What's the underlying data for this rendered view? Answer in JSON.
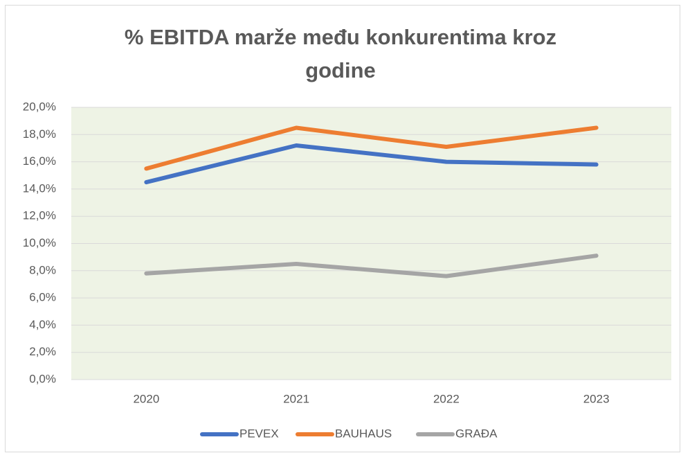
{
  "chart_data": {
    "type": "line",
    "title": "% EBITDA marže među konkurentima kroz godine",
    "categories": [
      "2020",
      "2021",
      "2022",
      "2023"
    ],
    "series": [
      {
        "name": "PEVEX",
        "color": "#4472c4",
        "values": [
          14.5,
          17.2,
          16.0,
          15.8
        ]
      },
      {
        "name": "BAUHAUS",
        "color": "#ed7d31",
        "values": [
          15.5,
          18.5,
          17.1,
          18.5
        ]
      },
      {
        "name": "GRAĐA",
        "color": "#a5a5a5",
        "values": [
          7.8,
          8.5,
          7.6,
          9.1
        ]
      }
    ],
    "ylim": [
      0,
      20
    ],
    "yticks": [
      {
        "value": 0,
        "label": "0,0%"
      },
      {
        "value": 2,
        "label": "2,0%"
      },
      {
        "value": 4,
        "label": "4,0%"
      },
      {
        "value": 6,
        "label": "6,0%"
      },
      {
        "value": 8,
        "label": "8,0%"
      },
      {
        "value": 10,
        "label": "10,0%"
      },
      {
        "value": 12,
        "label": "12,0%"
      },
      {
        "value": 14,
        "label": "14,0%"
      },
      {
        "value": 16,
        "label": "16,0%"
      },
      {
        "value": 18,
        "label": "18,0%"
      },
      {
        "value": 20,
        "label": "20,0%"
      }
    ],
    "grid": true,
    "legend": "bottom"
  }
}
